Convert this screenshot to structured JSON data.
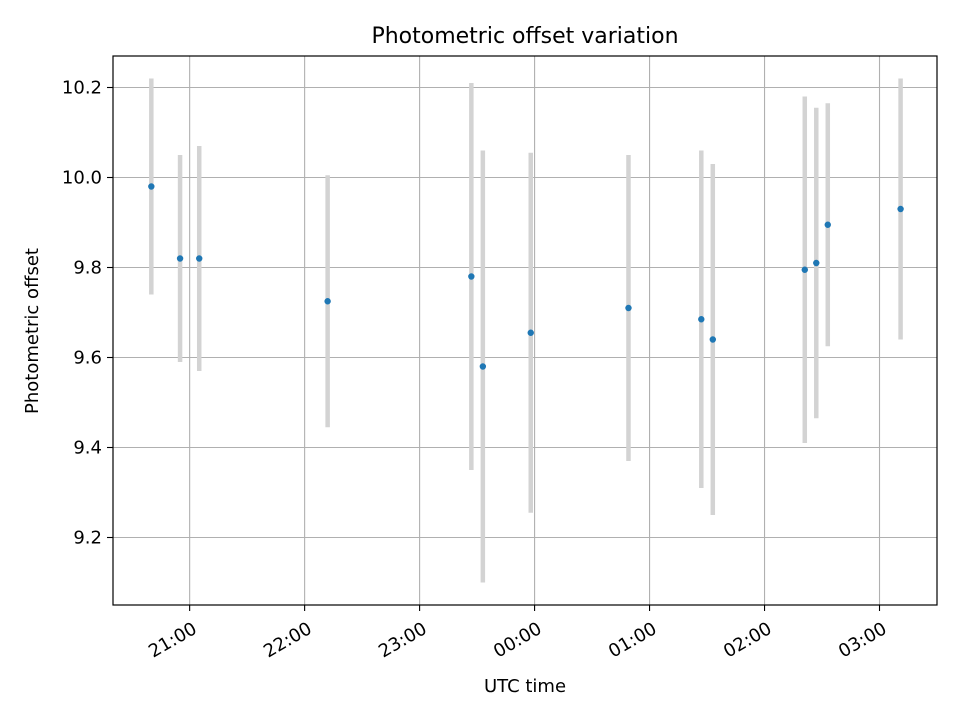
{
  "chart_data": {
    "type": "scatter",
    "title": "Photometric offset variation",
    "xlabel": "UTC time",
    "ylabel": "Photometric offset",
    "grid": true,
    "x_axis": {
      "kind": "time",
      "range": [
        "20:20",
        "03:30"
      ],
      "ticks": [
        "21:00",
        "22:00",
        "23:00",
        "00:00",
        "01:00",
        "02:00",
        "03:00"
      ]
    },
    "y_axis": {
      "range": [
        9.05,
        10.27
      ],
      "ticks": [
        9.2,
        9.4,
        9.6,
        9.8,
        10.0,
        10.2
      ],
      "tick_labels": [
        "9.2",
        "9.4",
        "9.6",
        "9.8",
        "10.0",
        "10.2"
      ]
    },
    "colors": {
      "point": "#1f77b4",
      "errorbar": "#d3d3d3",
      "grid": "#b0b0b0"
    },
    "series": [
      {
        "points": [
          {
            "x": "20:40",
            "y": 9.98,
            "err": 0.24
          },
          {
            "x": "20:55",
            "y": 9.82,
            "err": 0.23
          },
          {
            "x": "21:05",
            "y": 9.82,
            "err": 0.25
          },
          {
            "x": "22:12",
            "y": 9.725,
            "err": 0.28
          },
          {
            "x": "23:27",
            "y": 9.78,
            "err": 0.43
          },
          {
            "x": "23:33",
            "y": 9.58,
            "err": 0.48
          },
          {
            "x": "23:58",
            "y": 9.655,
            "err": 0.4
          },
          {
            "x": "00:49",
            "y": 9.71,
            "err": 0.34
          },
          {
            "x": "01:27",
            "y": 9.685,
            "err": 0.375
          },
          {
            "x": "01:33",
            "y": 9.64,
            "err": 0.39
          },
          {
            "x": "02:21",
            "y": 9.795,
            "err": 0.385
          },
          {
            "x": "02:27",
            "y": 9.81,
            "err": 0.345
          },
          {
            "x": "02:33",
            "y": 9.895,
            "err": 0.27
          },
          {
            "x": "03:11",
            "y": 9.93,
            "err": 0.29
          }
        ]
      }
    ]
  }
}
